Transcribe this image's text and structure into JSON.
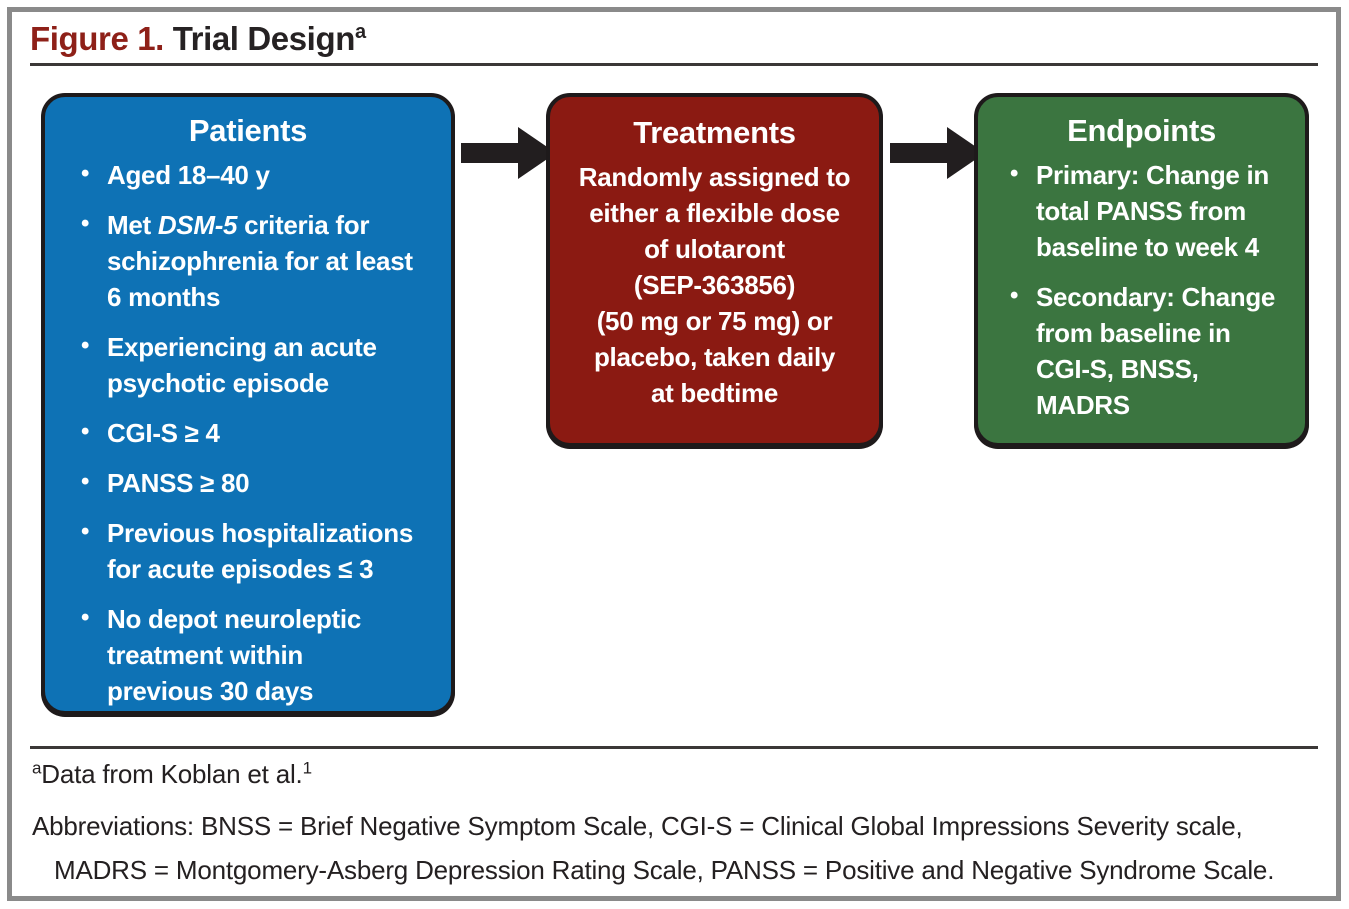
{
  "header": {
    "figure_label": "Figure 1.",
    "title": " Trial Design",
    "superscript": "a"
  },
  "boxes": {
    "patients": {
      "title": "Patients",
      "bullets": [
        {
          "segments": [
            {
              "text": "Aged 18–40 y"
            }
          ]
        },
        {
          "segments": [
            {
              "text": "Met "
            },
            {
              "text": "DSM-5",
              "italic": true
            },
            {
              "text": " criteria for\nschizophrenia for at least\n6 months"
            }
          ]
        },
        {
          "segments": [
            {
              "text": "Experiencing an acute\npsychotic episode"
            }
          ]
        },
        {
          "segments": [
            {
              "text": "CGI-S ≥ 4"
            }
          ]
        },
        {
          "segments": [
            {
              "text": "PANSS ≥ 80"
            }
          ]
        },
        {
          "segments": [
            {
              "text": "Previous hospitalizations\nfor acute episodes ≤ 3"
            }
          ]
        },
        {
          "segments": [
            {
              "text": "No depot neuroleptic\ntreatment within\nprevious 30 days"
            }
          ]
        }
      ]
    },
    "treatments": {
      "title": "Treatments",
      "lines": [
        "Randomly assigned to",
        "either a flexible dose",
        "of ulotaront",
        "(SEP-363856)",
        "(50 mg or 75 mg) or",
        "placebo, taken daily",
        "at bedtime"
      ]
    },
    "endpoints": {
      "title": "Endpoints",
      "bullets": [
        {
          "segments": [
            {
              "text": "Primary: Change in\ntotal PANSS from\nbaseline to week 4"
            }
          ]
        },
        {
          "segments": [
            {
              "text": "Secondary: Change\nfrom baseline in\nCGI-S, BNSS,\nMADRS"
            }
          ]
        }
      ]
    }
  },
  "footnotes": {
    "note_a": {
      "marker": "a",
      "text": "Data from Koblan et al.",
      "reference": "1"
    },
    "abbreviations": {
      "line1": "Abbreviations: BNSS = Brief Negative Symptom Scale, CGI-S = Clinical Global Impressions Severity scale,",
      "line2": "MADRS = Montgomery-Asberg Depression Rating Scale, PANSS = Positive and Negative Syndrome Scale."
    }
  },
  "colors": {
    "patients_box": "#0e72b5",
    "treatments_box": "#8b1a12",
    "endpoints_box": "#3b7540",
    "figure_label_red": "#8e2018",
    "box_border_black": "#1e1a1b",
    "arrow_black": "#221e1f",
    "frame_gray": "#8a8a8a",
    "text_white": "#ffffff"
  }
}
